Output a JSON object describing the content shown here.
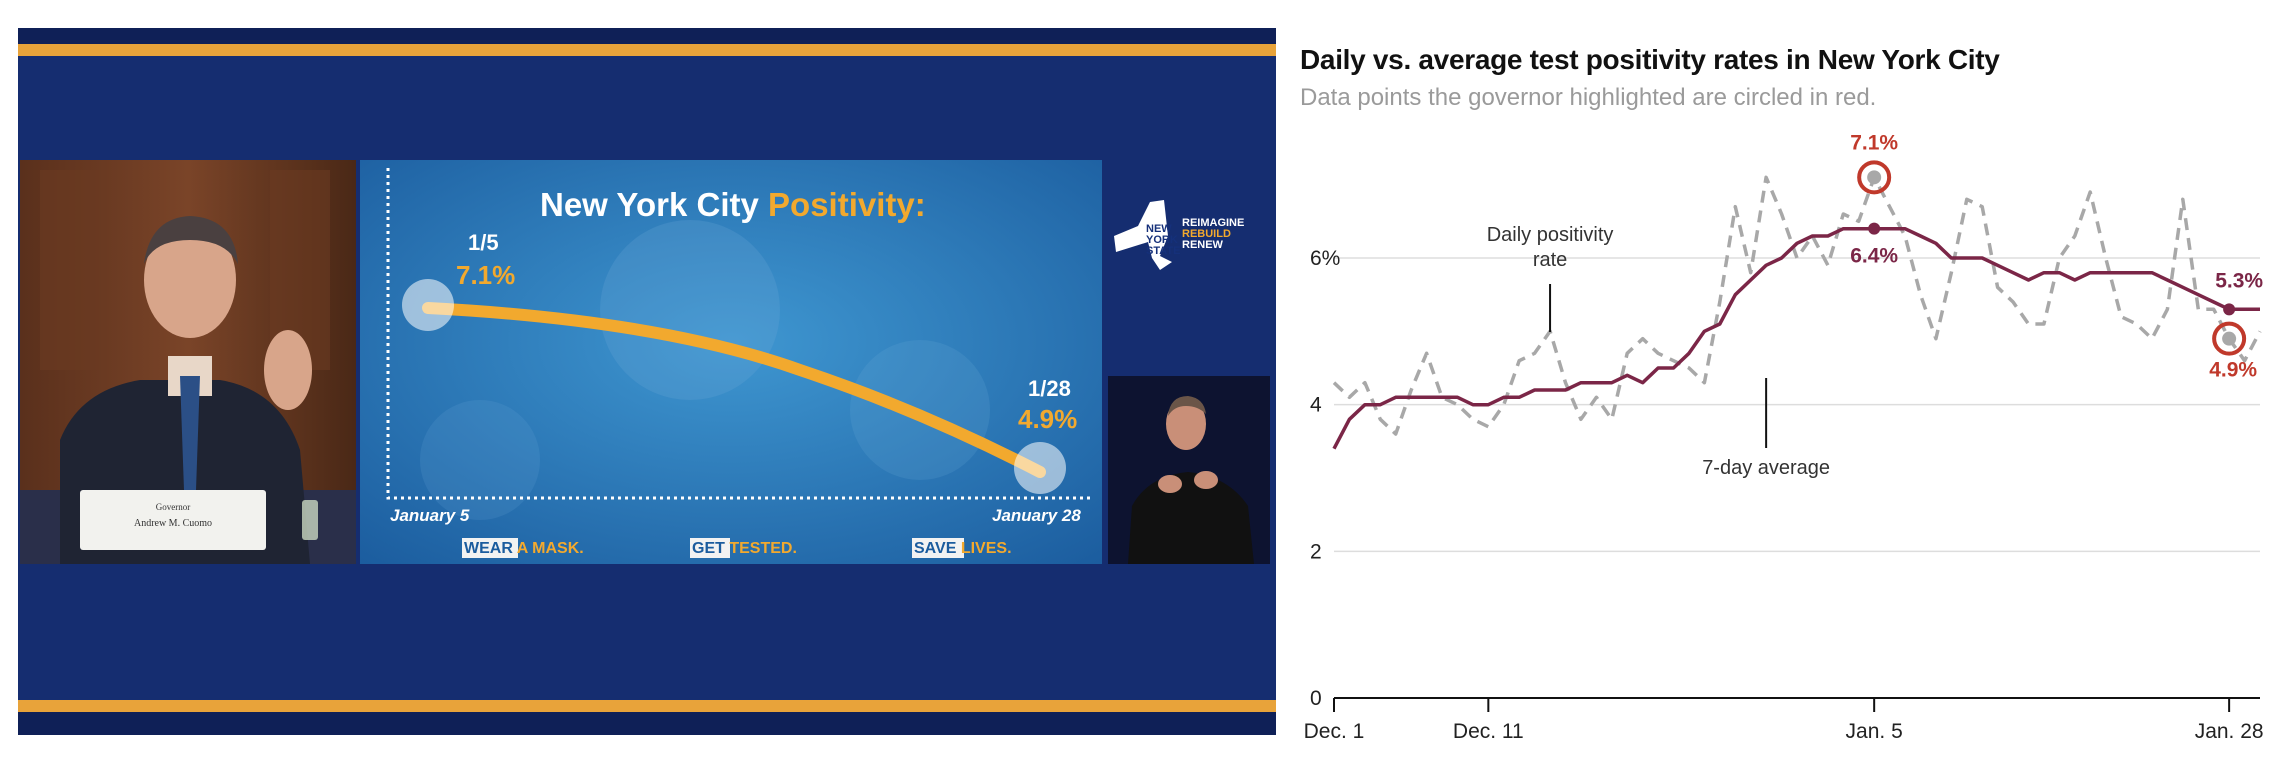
{
  "broadcast": {
    "speaker_placard_line1": "Governor",
    "speaker_placard_line2": "Andrew M. Cuomo",
    "slide": {
      "title_part1": "New York City ",
      "title_part2": "Positivity:",
      "start_date_short": "1/5",
      "start_value": "7.1%",
      "end_date_short": "1/28",
      "end_value": "4.9%",
      "axis_start": "January 5",
      "axis_end": "January 28",
      "footer": [
        {
          "highlight": "WEAR",
          "rest": " A MASK."
        },
        {
          "highlight": "GET",
          "rest": " TESTED."
        },
        {
          "highlight": "SAVE",
          "rest": " LIVES."
        }
      ]
    },
    "logo": {
      "state_words": [
        "NEW",
        "YORK",
        "STATE"
      ],
      "slogan_words": [
        "REIMAGINE",
        "REBUILD",
        "RENEW"
      ]
    }
  },
  "chart": {
    "title": "Daily vs. average test positivity rates in New York City",
    "subtitle": "Data points the governor highlighted are circled in red.",
    "annotation_daily_line1": "Daily positivity",
    "annotation_daily_line2": "rate",
    "annotation_avg": "7-day average",
    "label_jan5_daily": "7.1%",
    "label_jan5_avg": "6.4%",
    "label_jan28_avg": "5.3%",
    "label_jan28_daily": "4.9%",
    "colors": {
      "average_line": "#7b2647",
      "daily_line": "#a8a8a8",
      "highlight": "#c0392b",
      "gridline": "#dddddd"
    }
  },
  "chart_data": {
    "type": "line",
    "x_start": "Dec. 1",
    "x_end": "Jan. 29",
    "ylim": [
      0,
      7.5
    ],
    "yticks": [
      {
        "value": 0,
        "label": "0"
      },
      {
        "value": 2,
        "label": "2"
      },
      {
        "value": 4,
        "label": "4"
      },
      {
        "value": 6,
        "label": "6%"
      }
    ],
    "xticks": [
      {
        "index": 0,
        "label": "Dec. 1"
      },
      {
        "index": 10,
        "label": "Dec. 11"
      },
      {
        "index": 35,
        "label": "Jan. 5"
      },
      {
        "index": 58,
        "label": "Jan. 28"
      }
    ],
    "series": [
      {
        "key": "daily",
        "values": [
          4.3,
          4.1,
          4.3,
          3.8,
          3.6,
          4.2,
          4.7,
          4.1,
          4.0,
          3.8,
          3.7,
          4.0,
          4.6,
          4.7,
          5.0,
          4.3,
          3.8,
          4.1,
          3.8,
          4.7,
          4.9,
          4.7,
          4.6,
          4.5,
          4.3,
          5.4,
          6.7,
          5.8,
          7.1,
          6.6,
          6.0,
          6.3,
          5.9,
          6.6,
          6.5,
          7.1,
          6.7,
          6.3,
          5.5,
          4.9,
          5.8,
          6.8,
          6.7,
          5.6,
          5.4,
          5.1,
          5.1,
          6.0,
          6.3,
          6.9,
          6.0,
          5.2,
          5.1,
          4.9,
          5.3,
          6.8,
          5.3,
          5.3,
          4.9,
          4.6,
          5.0
        ]
      },
      {
        "key": "average",
        "values": [
          3.4,
          3.8,
          4.0,
          4.0,
          4.1,
          4.1,
          4.1,
          4.1,
          4.1,
          4.0,
          4.0,
          4.1,
          4.1,
          4.2,
          4.2,
          4.2,
          4.3,
          4.3,
          4.3,
          4.4,
          4.3,
          4.5,
          4.5,
          4.7,
          5.0,
          5.1,
          5.5,
          5.7,
          5.9,
          6.0,
          6.2,
          6.3,
          6.3,
          6.4,
          6.4,
          6.4,
          6.4,
          6.4,
          6.3,
          6.2,
          6.0,
          6.0,
          6.0,
          5.9,
          5.8,
          5.7,
          5.8,
          5.8,
          5.7,
          5.8,
          5.8,
          5.8,
          5.8,
          5.8,
          5.7,
          5.6,
          5.5,
          5.4,
          5.3,
          5.3,
          5.3
        ]
      }
    ],
    "highlights": [
      {
        "series": "daily",
        "index": 35,
        "value": 7.1
      },
      {
        "series": "daily",
        "index": 58,
        "value": 4.9
      }
    ],
    "average_markers": [
      {
        "index": 35,
        "value": 6.4
      },
      {
        "index": 58,
        "value": 5.3
      }
    ]
  }
}
